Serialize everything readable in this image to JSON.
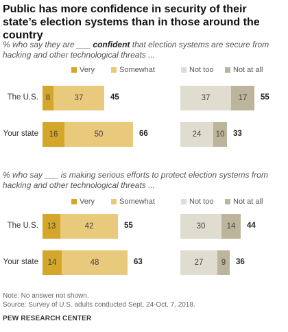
{
  "title": "Public has more confidence in security of their state’s election systems than in those around the country",
  "colors": {
    "very": "#d4a62a",
    "somewhat": "#e9c97b",
    "not_too": "#e0ddd0",
    "not_at_all": "#bcb59b"
  },
  "chart_data": [
    {
      "type": "bar",
      "subtitle_pre": "% who say they are ___ ",
      "subtitle_bold": "confident",
      "subtitle_post": " that election systems are secure from hacking and other technological threats ...",
      "legend": [
        "Very",
        "Somewhat",
        "Not too",
        "Not at all"
      ],
      "categories": [
        "The U.S.",
        "Your state"
      ],
      "positive": {
        "series": [
          {
            "name": "Very",
            "values": [
              8,
              16
            ]
          },
          {
            "name": "Somewhat",
            "values": [
              37,
              50
            ]
          }
        ],
        "totals": [
          45,
          66
        ]
      },
      "negative": {
        "series": [
          {
            "name": "Not too",
            "values": [
              37,
              24
            ]
          },
          {
            "name": "Not at all",
            "values": [
              17,
              10
            ]
          }
        ],
        "totals": [
          55,
          33
        ]
      }
    },
    {
      "type": "bar",
      "subtitle_pre": "% who say ___ is making serious efforts to protect election systems from hacking and other technological threats ...",
      "subtitle_bold": "",
      "subtitle_post": "",
      "legend": [
        "Very",
        "Somewhat",
        "Not too",
        "Not at all"
      ],
      "categories": [
        "The U.S.",
        "Your state"
      ],
      "positive": {
        "series": [
          {
            "name": "Very",
            "values": [
              13,
              14
            ]
          },
          {
            "name": "Somewhat",
            "values": [
              42,
              48
            ]
          }
        ],
        "totals": [
          55,
          63
        ]
      },
      "negative": {
        "series": [
          {
            "name": "Not too",
            "values": [
              30,
              27
            ]
          },
          {
            "name": "Not at all",
            "values": [
              14,
              9
            ]
          }
        ],
        "totals": [
          44,
          36
        ]
      }
    }
  ],
  "note": "Note: No answer not shown.",
  "source": "Source: Survey of U.S. adults conducted Sept. 24-Oct. 7, 2018.",
  "brand": "PEW RESEARCH CENTER"
}
